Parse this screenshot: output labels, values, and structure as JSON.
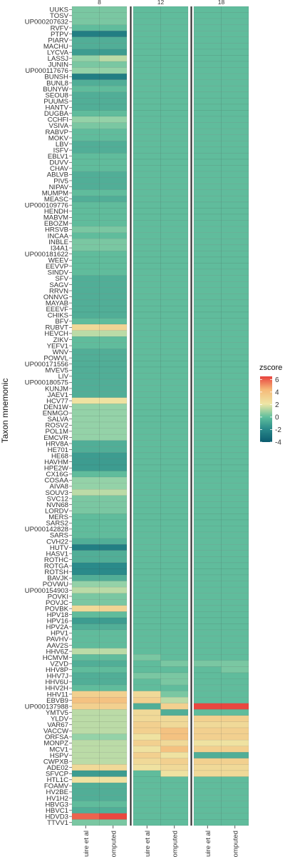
{
  "chart_data": {
    "type": "heatmap",
    "ylabel": "Taxon mnemonic",
    "facets": [
      "8",
      "12",
      "18"
    ],
    "columns": [
      "Maguire et al",
      "Recomputed"
    ],
    "rows": [
      "UUKS",
      "TOSV",
      "UP000207632",
      "RVFV",
      "PTPV",
      "PIARV",
      "MACHU",
      "LYCVA",
      "LASSJ",
      "JUNIN",
      "UP000117676",
      "BUNSH",
      "BUNL8",
      "BUNYW",
      "SEOU8",
      "PUUMS",
      "HANTV",
      "DUGBA",
      "CCHFI",
      "VSIVA",
      "RABVP",
      "MOKV",
      "LBV",
      "ISFV",
      "EBLV1",
      "DUVV",
      "CHAV",
      "ABLVB",
      "PIV5",
      "NIPAV",
      "MUMPM",
      "MEASC",
      "UP000109776",
      "HENDH",
      "MABVM",
      "EBOZM",
      "HRSVB",
      "INCAA",
      "INBLE",
      "I34A1",
      "UP000181622",
      "WEEV",
      "EEVVP",
      "SINDV",
      "SFV",
      "SAGV",
      "RRVN",
      "ONNVG",
      "MAYAB",
      "EEEVF",
      "CHIKS",
      "BFV",
      "RUBVT",
      "HEVCH",
      "ZIKV",
      "YEFV1",
      "WNV",
      "POWVL",
      "UP000171556",
      "MVEV5",
      "LIV",
      "UP000180575",
      "KUNJM",
      "JAEV1",
      "HCV77",
      "DEN1W",
      "ENMGO",
      "SALVA",
      "ROSV2",
      "POL1M",
      "EMCVR",
      "HRV8A",
      "HE701",
      "HE68",
      "HAVHM",
      "HPE2W",
      "CX16G",
      "COSAA",
      "AIVA8",
      "SOUV3",
      "SVC12",
      "NVN68",
      "LORDV",
      "MERS",
      "SARS2",
      "UP000142828",
      "SARS",
      "CVH22",
      "HUTV",
      "HASV1",
      "ROTHC",
      "ROTGA",
      "ROTSH",
      "BAVJK",
      "POVWU",
      "UP000154903",
      "POVKI",
      "POVJC",
      "POVBK",
      "HPV18",
      "HPV16",
      "HPV2A",
      "HPV1",
      "PAVHV",
      "AAV2S",
      "HHV6Z",
      "HCMVM",
      "VZVD",
      "HHV8P",
      "HHV7J",
      "HHV6U",
      "HHV2H",
      "HHV11",
      "EBVB9",
      "UP000137988",
      "YMTV5",
      "YLDV",
      "VAR67",
      "VACCW",
      "ORFSA",
      "MONPZ",
      "MCV1",
      "HSPV",
      "CWPXB",
      "ADE02",
      "SFVCP",
      "HTL1C",
      "FOAMV",
      "HV2BE",
      "HV1H2",
      "HBVG3",
      "HBVC1",
      "HDVD3",
      "TTVV1"
    ],
    "values": {
      "8": {
        "Maguire et al": [
          0,
          0,
          0,
          -0.6,
          -2.5,
          -1,
          -1,
          -1.5,
          0.6,
          0,
          0.6,
          -2.5,
          -1,
          -0.6,
          -1,
          -1,
          -1,
          -0.6,
          0.6,
          0,
          -0.6,
          -0.6,
          -1,
          -1,
          -0.6,
          -0.6,
          -0.6,
          -1,
          -1,
          -1,
          -0.6,
          -1,
          -0.6,
          -0.6,
          -0.6,
          -0.6,
          0,
          -0.6,
          0,
          0,
          -0.6,
          -0.6,
          -0.6,
          -0.6,
          -1,
          -1,
          -1,
          -1,
          -1,
          -1,
          -1,
          -0.6,
          2.6,
          1.2,
          -0.6,
          -0.6,
          -1,
          -1,
          -1,
          -1,
          -1,
          -1,
          -1,
          -1,
          2.2,
          0.6,
          0.6,
          0.6,
          0.6,
          0.6,
          0.6,
          -1,
          -1,
          -1.5,
          -1.5,
          -1.5,
          -0.6,
          0.6,
          0.6,
          1.2,
          0,
          0,
          0,
          -0.6,
          -0.6,
          -0.6,
          -0.6,
          -1,
          -2.5,
          -1,
          -1,
          -2,
          -2,
          -1,
          0.6,
          1.2,
          0,
          0,
          2.6,
          -0.6,
          -1.5,
          -1,
          -0.6,
          -0.6,
          -0.6,
          1.2,
          -0.6,
          -1,
          -0.6,
          -1,
          -1,
          -0.6,
          3,
          3.6,
          3,
          1.2,
          1.2,
          1.2,
          1.2,
          0.6,
          1.2,
          1.2,
          1.2,
          1.2,
          2.6,
          -1.5,
          2.2,
          -1,
          -1,
          -1,
          -0.6,
          -1,
          5.8,
          0
        ],
        "Recomputed": [
          0,
          0,
          0,
          -0.6,
          -2.5,
          -1,
          -1,
          -1.5,
          1.2,
          0,
          0.6,
          -2.5,
          -1,
          -0.6,
          -1,
          -1,
          -1,
          -0.6,
          0.6,
          0,
          -0.6,
          -0.6,
          -1,
          -1,
          -0.6,
          -0.6,
          -0.6,
          -1,
          -1,
          -1,
          -0.6,
          -1,
          -0.6,
          -0.6,
          -0.6,
          -0.6,
          0,
          -0.6,
          0,
          0,
          -0.6,
          -0.6,
          -0.6,
          -0.6,
          -1,
          -1,
          -1,
          -1,
          -1,
          -1,
          -1,
          -0.6,
          2.8,
          1.2,
          -0.6,
          -0.6,
          -1,
          -1,
          -1,
          -1,
          -1,
          -1,
          -1,
          -1,
          2.2,
          0.6,
          0.6,
          0.6,
          0.6,
          0.6,
          0.6,
          -1,
          -1,
          -1.5,
          -1.5,
          -1.5,
          -0.6,
          0.6,
          0.6,
          1.2,
          0,
          0,
          0,
          -0.6,
          -0.6,
          -0.6,
          -0.6,
          -1,
          -2.5,
          -1,
          -1,
          -2,
          -2,
          -1,
          0.6,
          1.2,
          0,
          0,
          2.8,
          -0.6,
          -1.5,
          -1,
          -0.6,
          -0.6,
          -0.6,
          1.2,
          -0.6,
          -1,
          -0.6,
          -1,
          -1,
          -0.6,
          3,
          3.6,
          3,
          1.2,
          1.2,
          1.2,
          1.2,
          0.6,
          1.2,
          1.2,
          1.2,
          1.2,
          2.6,
          -1.5,
          2.2,
          -1,
          -1,
          -1,
          -0.6,
          -1,
          6.4,
          0
        ]
      },
      "12": {
        "Maguire et al": [
          -0.6,
          -0.6,
          -0.6,
          -0.6,
          -0.6,
          -0.6,
          -0.6,
          -0.6,
          -0.6,
          -0.6,
          -0.6,
          -0.6,
          -0.6,
          -0.6,
          -0.6,
          -0.6,
          -0.6,
          -0.6,
          -0.6,
          -0.6,
          -0.6,
          -0.6,
          -0.6,
          -0.6,
          -0.6,
          -0.6,
          -0.6,
          -0.6,
          -0.6,
          -0.6,
          -0.6,
          -0.6,
          -0.6,
          -0.6,
          -0.6,
          -0.6,
          -0.6,
          -0.6,
          -0.6,
          -0.6,
          -0.6,
          -0.6,
          -0.6,
          -0.6,
          -0.6,
          -0.6,
          -0.6,
          -0.6,
          -0.6,
          -0.6,
          -0.6,
          -0.6,
          -0.6,
          -0.6,
          -0.6,
          -0.6,
          -0.6,
          -0.6,
          -0.6,
          -0.6,
          -0.6,
          -0.6,
          -0.6,
          -0.6,
          -0.6,
          -0.6,
          -0.6,
          -0.6,
          -0.6,
          -0.6,
          -0.6,
          -0.6,
          -0.6,
          -0.6,
          -0.6,
          -0.6,
          -0.6,
          -0.6,
          -0.6,
          -0.6,
          -0.6,
          -0.6,
          -0.6,
          -0.6,
          -0.6,
          -0.6,
          -0.6,
          -0.6,
          -0.6,
          -0.6,
          -0.6,
          -0.6,
          -0.6,
          -0.6,
          -0.6,
          -0.6,
          -0.6,
          -0.6,
          -0.6,
          -0.6,
          -0.6,
          -0.6,
          -0.6,
          -0.6,
          -0.6,
          -0.6,
          0,
          -0.6,
          -0.6,
          0,
          -0.6,
          -0.6,
          2.6,
          3,
          -1,
          2.6,
          2.6,
          3,
          3,
          2.2,
          3,
          2.2,
          3,
          2.6,
          2.2,
          -0.6,
          -0.6,
          -0.6,
          -0.6,
          -0.6,
          -0.6,
          -0.6,
          -0.6,
          -0.6
        ],
        "Recomputed": [
          -0.6,
          -0.6,
          -0.6,
          -0.6,
          -0.6,
          -0.6,
          -0.6,
          -0.6,
          -0.6,
          -0.6,
          -0.6,
          -0.6,
          -0.6,
          -0.6,
          -0.6,
          -0.6,
          -0.6,
          -0.6,
          -0.6,
          -0.6,
          -0.6,
          -0.6,
          -0.6,
          -0.6,
          -0.6,
          -0.6,
          -0.6,
          -0.6,
          -0.6,
          -0.6,
          -0.6,
          -0.6,
          -0.6,
          -0.6,
          -0.6,
          -0.6,
          -0.6,
          -0.6,
          -0.6,
          -0.6,
          -0.6,
          -0.6,
          -0.6,
          -0.6,
          -0.6,
          -0.6,
          -0.6,
          -0.6,
          -0.6,
          -0.6,
          -0.6,
          -0.6,
          -0.6,
          -0.6,
          -0.6,
          -0.6,
          -0.6,
          -0.6,
          -0.6,
          -0.6,
          -0.6,
          -0.6,
          -0.6,
          -0.6,
          -0.6,
          -0.6,
          -0.6,
          -0.6,
          -0.6,
          -0.6,
          -0.6,
          -0.6,
          -0.6,
          -0.6,
          -0.6,
          -0.6,
          -0.6,
          -0.6,
          -0.6,
          -0.6,
          -0.6,
          -0.6,
          -0.6,
          -0.6,
          -0.6,
          -0.6,
          -0.6,
          -0.6,
          -0.6,
          -0.6,
          -0.6,
          -0.6,
          -0.6,
          -0.6,
          -0.6,
          -0.6,
          -0.6,
          -0.6,
          -0.6,
          -0.6,
          -0.6,
          -0.6,
          -0.6,
          -0.6,
          -0.6,
          -0.6,
          -0.6,
          0,
          -0.6,
          0,
          0,
          -0.6,
          0,
          1.2,
          3,
          -1,
          2.6,
          2.6,
          3.6,
          3.6,
          2.6,
          3.6,
          2.2,
          3,
          2.6,
          2.2,
          -0.6,
          -0.6,
          -0.6,
          -0.6,
          -0.6,
          -0.6,
          -0.6,
          -0.6,
          -0.6
        ]
      },
      "18": {
        "Maguire et al": [
          -0.6,
          -0.6,
          -0.6,
          -0.6,
          -0.6,
          -0.6,
          -0.6,
          -0.6,
          -0.6,
          -0.6,
          -0.6,
          -0.6,
          -0.6,
          -0.6,
          -0.6,
          -0.6,
          -0.6,
          -0.6,
          -0.6,
          -0.6,
          -0.6,
          -0.6,
          -0.6,
          -0.6,
          -0.6,
          -0.6,
          -0.6,
          -0.6,
          -0.6,
          -0.6,
          -0.6,
          -0.6,
          -0.6,
          -0.6,
          -0.6,
          -0.6,
          -0.6,
          -0.6,
          -0.6,
          -0.6,
          -0.6,
          -0.6,
          -0.6,
          -0.6,
          -0.6,
          -0.6,
          -0.6,
          -0.6,
          -0.6,
          -0.6,
          -0.6,
          -0.6,
          -0.6,
          -0.6,
          -0.6,
          -0.6,
          -0.6,
          -0.6,
          -0.6,
          -0.6,
          -0.6,
          -0.6,
          -0.6,
          -0.6,
          -0.6,
          -0.6,
          -0.6,
          -0.6,
          -0.6,
          -0.6,
          -0.6,
          -0.6,
          -0.6,
          -0.6,
          -0.6,
          -0.6,
          -0.6,
          -0.6,
          -0.6,
          -0.6,
          -0.6,
          -0.6,
          -0.6,
          -0.6,
          -0.6,
          -0.6,
          -0.6,
          -0.6,
          -0.6,
          -0.6,
          -0.6,
          -0.6,
          -0.6,
          -0.6,
          -0.6,
          -0.6,
          -0.6,
          -0.6,
          -0.6,
          -0.6,
          -0.6,
          -0.6,
          -0.6,
          -0.6,
          -0.6,
          -0.6,
          -0.6,
          0,
          -0.6,
          -0.6,
          -0.6,
          -0.6,
          -0.6,
          -0.6,
          6.4,
          -0.6,
          3,
          2.6,
          3,
          3,
          2.2,
          3,
          -1,
          3,
          2.6,
          2.6,
          -0.6,
          -0.6,
          -0.6,
          -0.6,
          -0.6,
          -0.6,
          -0.6,
          -0.6,
          -0.6
        ],
        "Recomputed": [
          -0.6,
          -0.6,
          -0.6,
          -0.6,
          -0.6,
          -0.6,
          -0.6,
          -0.6,
          -0.6,
          -0.6,
          -0.6,
          -0.6,
          -0.6,
          -0.6,
          -0.6,
          -0.6,
          -0.6,
          -0.6,
          -0.6,
          -0.6,
          -0.6,
          -0.6,
          -0.6,
          -0.6,
          -0.6,
          -0.6,
          -0.6,
          -0.6,
          -0.6,
          -0.6,
          -0.6,
          -0.6,
          -0.6,
          -0.6,
          -0.6,
          -0.6,
          -0.6,
          -0.6,
          -0.6,
          -0.6,
          -0.6,
          -0.6,
          -0.6,
          -0.6,
          -0.6,
          -0.6,
          -0.6,
          -0.6,
          -0.6,
          -0.6,
          -0.6,
          -0.6,
          -0.6,
          -0.6,
          -0.6,
          -0.6,
          -0.6,
          -0.6,
          -0.6,
          -0.6,
          -0.6,
          -0.6,
          -0.6,
          -0.6,
          -0.6,
          -0.6,
          -0.6,
          -0.6,
          -0.6,
          -0.6,
          -0.6,
          -0.6,
          -0.6,
          -0.6,
          -0.6,
          -0.6,
          -0.6,
          -0.6,
          -0.6,
          -0.6,
          -0.6,
          -0.6,
          -0.6,
          -0.6,
          -0.6,
          -0.6,
          -0.6,
          -0.6,
          -0.6,
          -0.6,
          -0.6,
          -0.6,
          -0.6,
          -0.6,
          -0.6,
          -0.6,
          -0.6,
          -0.6,
          -0.6,
          -0.6,
          -0.6,
          -0.6,
          -0.6,
          -0.6,
          -0.6,
          -0.6,
          -0.6,
          0,
          0,
          -0.6,
          -0.6,
          -0.6,
          -0.6,
          -0.6,
          6.4,
          -0.6,
          3,
          2.6,
          3,
          3,
          2.2,
          3,
          -1,
          3,
          2.6,
          2.6,
          -0.6,
          -0.6,
          -0.6,
          -0.6,
          -0.6,
          -0.6,
          -0.6,
          -0.6,
          -0.6
        ]
      }
    },
    "legend": {
      "title": "zscore",
      "ticks": [
        6,
        4,
        2,
        0,
        -2,
        -4
      ],
      "range": [
        -4,
        6.5
      ],
      "position": "right"
    },
    "colors": {
      "low": "#0b5b6f",
      "mid_low": "#5fbf9d",
      "mid": "#eee6a6",
      "mid_high": "#f6b978",
      "high": "#e8423e"
    }
  }
}
